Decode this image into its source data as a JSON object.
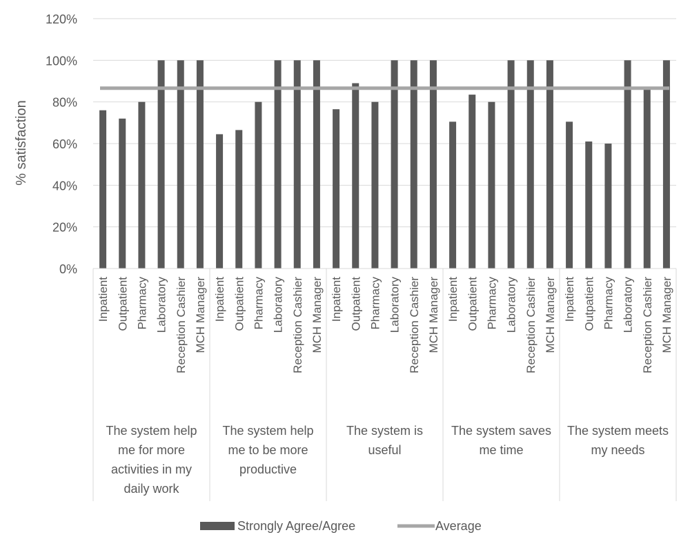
{
  "chart_data": {
    "type": "bar",
    "ylabel": "% satisfaction",
    "ylim": [
      0,
      1.2
    ],
    "y_ticks": [
      0,
      0.2,
      0.4,
      0.6,
      0.8,
      1.0,
      1.2
    ],
    "y_tick_labels": [
      "0%",
      "20%",
      "40%",
      "60%",
      "80%",
      "100%",
      "120%"
    ],
    "grid": true,
    "legend_position": "bottom",
    "groups": [
      {
        "label_lines": [
          "The system help",
          "me for more",
          "activities in my",
          "daily work"
        ],
        "categories": [
          "Inpatient",
          "Outpatient",
          "Pharmacy",
          "Laboratory",
          "Reception Cashier",
          "MCH Manager"
        ],
        "values": [
          0.76,
          0.72,
          0.8,
          1.0,
          1.0,
          1.0
        ]
      },
      {
        "label_lines": [
          "The system help",
          "me to be more",
          "productive"
        ],
        "categories": [
          "Inpatient",
          "Outpatient",
          "Pharmacy",
          "Laboratory",
          "Reception Cashier",
          "MCH Manager"
        ],
        "values": [
          0.645,
          0.665,
          0.8,
          1.0,
          1.0,
          1.0
        ]
      },
      {
        "label_lines": [
          "The system is",
          "useful"
        ],
        "categories": [
          "Inpatient",
          "Outpatient",
          "Pharmacy",
          "Laboratory",
          "Reception Cashier",
          "MCH Manager"
        ],
        "values": [
          0.765,
          0.89,
          0.8,
          1.0,
          1.0,
          1.0
        ]
      },
      {
        "label_lines": [
          "The system saves",
          "me time"
        ],
        "categories": [
          "Inpatient",
          "Outpatient",
          "Pharmacy",
          "Laboratory",
          "Reception Cashier",
          "MCH Manager"
        ],
        "values": [
          0.705,
          0.835,
          0.8,
          1.0,
          1.0,
          1.0
        ]
      },
      {
        "label_lines": [
          "The system meets",
          "my needs"
        ],
        "categories": [
          "Inpatient",
          "Outpatient",
          "Pharmacy",
          "Laboratory",
          "Reception Cashier",
          "MCH Manager"
        ],
        "values": [
          0.705,
          0.61,
          0.6,
          1.0,
          0.86,
          1.0
        ]
      }
    ],
    "series": [
      {
        "name": "Strongly Agree/Agree",
        "type": "bar",
        "color": "#595959"
      },
      {
        "name": "Average",
        "type": "line",
        "value": 0.866,
        "color": "#a6a6a6"
      }
    ]
  }
}
